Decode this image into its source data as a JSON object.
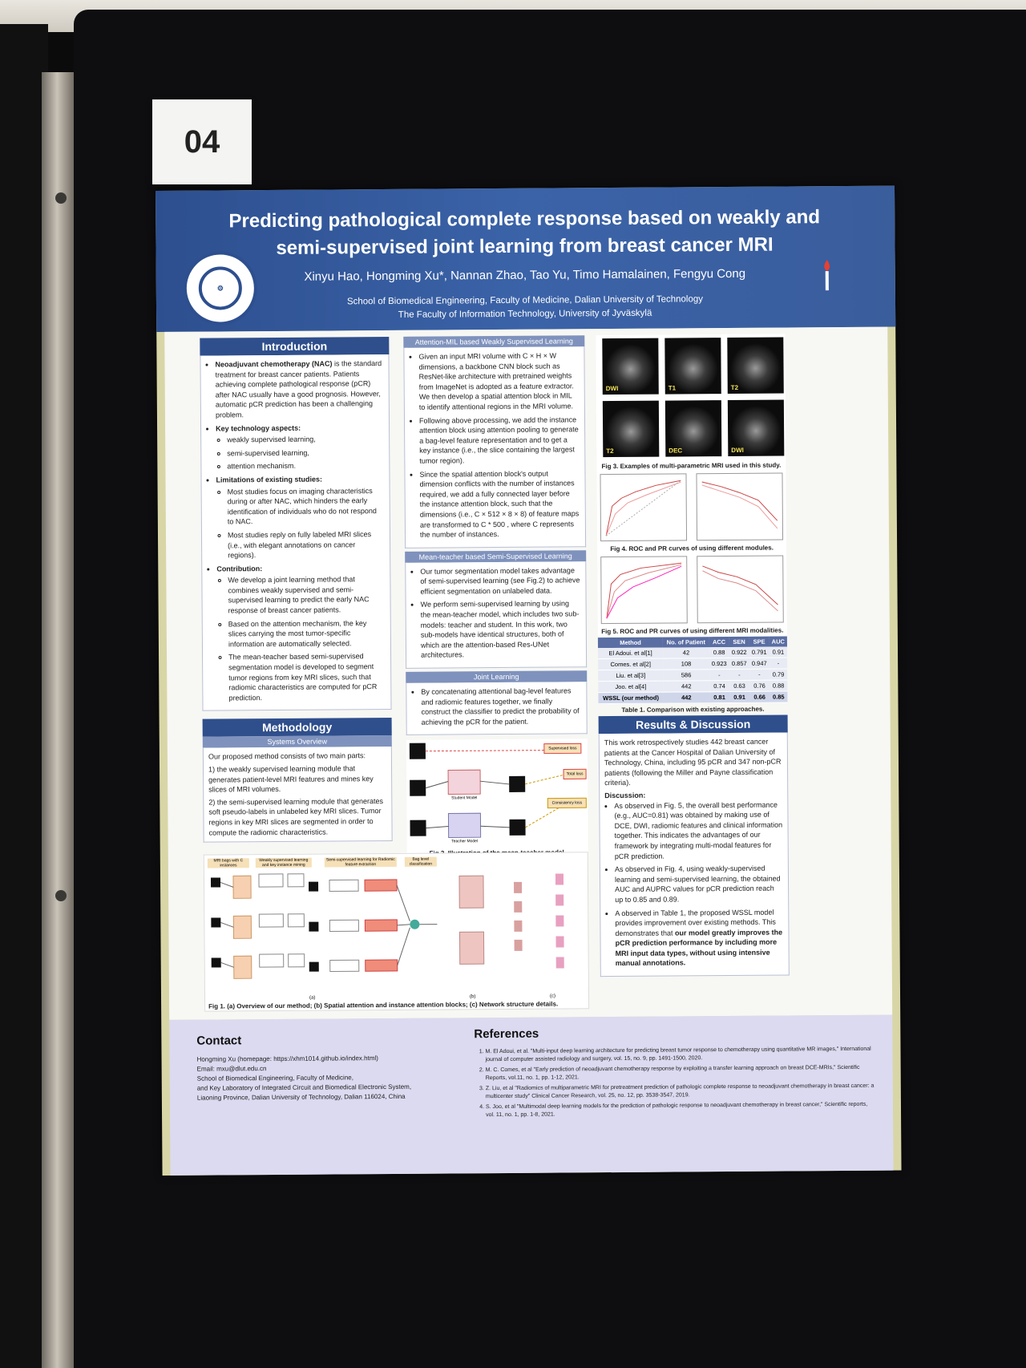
{
  "board_number": "04",
  "poster": {
    "title": "Predicting pathological complete response based on weakly and semi-supervised joint learning from breast cancer MRI",
    "authors": "Xinyu Hao, Hongming Xu*, Nannan Zhao, Tao Yu, Timo Hamalainen, Fengyu Cong",
    "affiliation_1": "School of Biomedical Engineering, Faculty of Medicine, Dalian University of Technology",
    "affiliation_2": "The Faculty of Information Technology, University of Jyväskylä",
    "intro": {
      "heading": "Introduction",
      "p1_bold": "Neoadjuvant chemotherapy (NAC)",
      "p1_rest": " is the standard treatment for breast cancer patients. Patients achieving complete pathological response (pCR) after NAC usually have a good prognosis. However, automatic pCR prediction has been a challenging problem.",
      "key_label": "Key technology aspects:",
      "key1": "weakly supervised learning,",
      "key2": "semi-supervised learning,",
      "key3": "attention mechanism.",
      "lim_label": "Limitations of existing studies:",
      "lim1": "Most studies focus on imaging characteristics during or after NAC, which hinders the early identification of individuals who do not respond to NAC.",
      "lim2": "Most studies reply on fully labeled MRI slices (i.e., with elegant annotations on cancer regions).",
      "contrib_label": "Contribution:",
      "c1": "We develop a joint learning method that combines weakly supervised and semi-supervised learning to predict the early NAC response of breast cancer patients.",
      "c2": "Based on the attention mechanism, the key slices carrying the most tumor-specific information are automatically selected.",
      "c3": "The mean-teacher based semi-supervised segmentation model is developed to segment tumor regions from key MRI slices, such that radiomic characteristics are computed for pCR prediction."
    },
    "methodology": {
      "heading": "Methodology",
      "sub": "Systems Overview",
      "p0": "Our proposed method consists of two main parts:",
      "m1": "1) the weakly supervised learning module that generates patient-level MRI features and mines key slices of MRI volumes.",
      "m2": "2) the semi-supervised learning module that generates soft pseudo-labels in unlabeled key MRI slices. Tumor regions in key MRI slices are segmented in order to compute the radiomic characteristics."
    },
    "col2": {
      "sub1": "Attention-MIL based Weakly Supervised Learning",
      "b1": "Given an input MRI volume with C × H × W dimensions, a backbone CNN block such as ResNet-like architecture with pretrained weights from ImageNet is adopted as a feature extractor. We then develop a spatial attention block in MIL to identify attentional regions in the MRI volume.",
      "b2": "Following above processing, we add the instance attention block using attention pooling to generate a bag-level feature representation and to get a key instance (i.e., the slice containing the largest tumor region).",
      "b3": "Since the spatial attention block's output dimension conflicts with the number of instances required, we add a fully connected layer before the instance attention block, such that the dimensions (i.e., C × 512 × 8 × 8) of feature maps are transformed to C * 500 , where C represents the number of instances.",
      "sub2": "Mean-teacher based Semi-Supervised Learning",
      "b4": "Our tumor segmentation model takes advantage of semi-supervised learning (see Fig.2) to achieve efficient segmentation on unlabeled data.",
      "b5": "We perform semi-supervised learning by using the mean-teacher model, which includes two sub-models: teacher and student. In this work, two sub-models have identical structures, both of which are the attention-based Res-UNet architectures.",
      "sub3": "Joint Learning",
      "b6": "By concatenating attentional bag-level features and radiomic features together, we finally construct the classifier to predict the probability of achieving the pCR for the patient.",
      "fig2_caption": "Fig 2. Illustration of the mean-teacher model.",
      "fig2_student": "Student Model",
      "fig2_teacher": "Teacher Model",
      "fig2_sup": "Supervised loss",
      "fig2_total": "Total loss",
      "fig2_cons": "Consistency loss"
    },
    "col3": {
      "mri_labels": [
        "DWI",
        "T1",
        "T2",
        "T2",
        "DEC",
        "DWI"
      ],
      "fig3_caption": "Fig 3. Examples of multi-parametric MRI used in this study.",
      "fig4_caption": "Fig 4. ROC and PR curves of using different modules.",
      "fig5_caption": "Fig 5. ROC and PR curves of using different MRI modalities.",
      "table_headers": [
        "Method",
        "No. of Patient",
        "ACC",
        "SEN",
        "SPE",
        "AUC"
      ],
      "table_rows": [
        [
          "El Adoui. et al[1]",
          "42",
          "0.88",
          "0.922",
          "0.791",
          "0.91"
        ],
        [
          "Comes. et al[2]",
          "108",
          "0.923",
          "0.857",
          "0.947",
          "-"
        ],
        [
          "Liu. et al[3]",
          "586",
          "-",
          "-",
          "-",
          "0.79"
        ],
        [
          "Joo. et al[4]",
          "442",
          "0.74",
          "0.63",
          "0.76",
          "0.88"
        ],
        [
          "WSSL (our method)",
          "442",
          "0.81",
          "0.91",
          "0.66",
          "0.85"
        ]
      ],
      "table_caption": "Table 1. Comparison with existing approaches.",
      "results_heading": "Results & Discussion",
      "r0": "This work retrospectively studies 442 breast cancer patients at the Cancer Hospital of Dalian University of Technology, China, including 95 pCR and 347 non-pCR patients (following the Miller and Payne classification criteria).",
      "disc_label": "Discussion:",
      "d1": "As observed in Fig. 5, the overall best performance (e.g., AUC=0.81) was obtained by making use of DCE, DWI, radiomic features and clinical information together. This indicates the advantages of our framework by integrating multi-modal features for pCR prediction.",
      "d2": "As observed in Fig. 4, using weakly-supervised learning and semi-supervised learning, the obtained AUC and AUPRC values for pCR prediction reach up to 0.85 and 0.89.",
      "d3_pre": "A observed in Table 1, the proposed WSSL model provides improvement over existing methods. This demonstrates that ",
      "d3_bold": "our model greatly improves the pCR prediction performance by including more MRI input data types, without using intensive manual annotations."
    },
    "fig1": {
      "caption": "Fig 1. (a) Overview of our method; (b) Spatial attention and instance attention blocks; (c) Network structure details.",
      "h1": "MRI bags with C instances",
      "h2": "Weakly supervised learning and key instance mining",
      "h3": "Semi-supervised learning for Radiomic feature extraction",
      "h4": "Bag level classification",
      "a": "(a)",
      "b": "(b)",
      "c": "(c)"
    },
    "contact": {
      "heading": "Contact",
      "l1": "Hongming Xu (homepage: https://xhm1014.github.io/index.html)",
      "l2": "Email: mxu@dlut.edu.cn",
      "l3": "School of Biomedical Engineering, Faculty of Medicine,",
      "l4": "and Key Laboratory of Integrated Circuit and Biomedical Electronic System,",
      "l5": "Liaoning Province, Dalian University of Technology, Dalian 116024, China"
    },
    "references": {
      "heading": "References",
      "r1": "M. El Adoui, et al. \"Multi-input deep learning architecture for predicting breast tumor response to chemotherapy using quantitative MR images,\" International journal of computer assisted radiology and surgery, vol. 15, no. 9, pp. 1491-1500, 2020.",
      "r2": "M. C. Comes, et al \"Early prediction of neoadjuvant chemotherapy response by exploiting a transfer learning approach on breast DCE-MRIs,\" Scientific Reports, vol.11, no. 1, pp. 1-12, 2021.",
      "r3": "Z. Liu, et al \"Radiomics of multiparametric MRI for pretreatment prediction of pathologic complete response to neoadjuvant chemotherapy in breast cancer: a multicenter study\" Clinical Cancer Research, vol. 25, no. 12, pp. 3538-3547, 2019.",
      "r4": "S. Joo, et al \"Multimodal deep learning models for the prediction of pathologic response to neoadjuvant chemotherapy in breast cancer,\" Scientific reports, vol. 11, no. 1, pp. 1-8, 2021."
    }
  }
}
